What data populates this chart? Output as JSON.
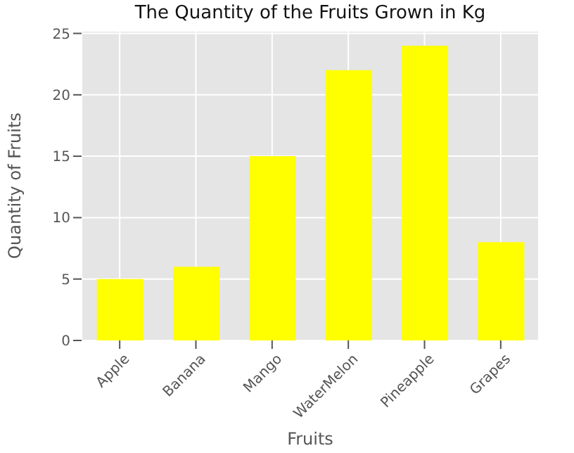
{
  "chart_data": {
    "type": "bar",
    "title": "The Quantity of the Fruits Grown in Kg",
    "xlabel": "Fruits",
    "ylabel": "Quantity of Fruits",
    "categories": [
      "Apple",
      "Banana",
      "Mango",
      "WaterMelon",
      "Pineapple",
      "Grapes"
    ],
    "values": [
      5,
      6,
      15,
      22,
      24,
      8
    ],
    "color": "#ffff00",
    "ylim": [
      0,
      25.2
    ],
    "yticks": [
      0,
      5,
      10,
      15,
      20,
      25
    ],
    "grid": true
  }
}
